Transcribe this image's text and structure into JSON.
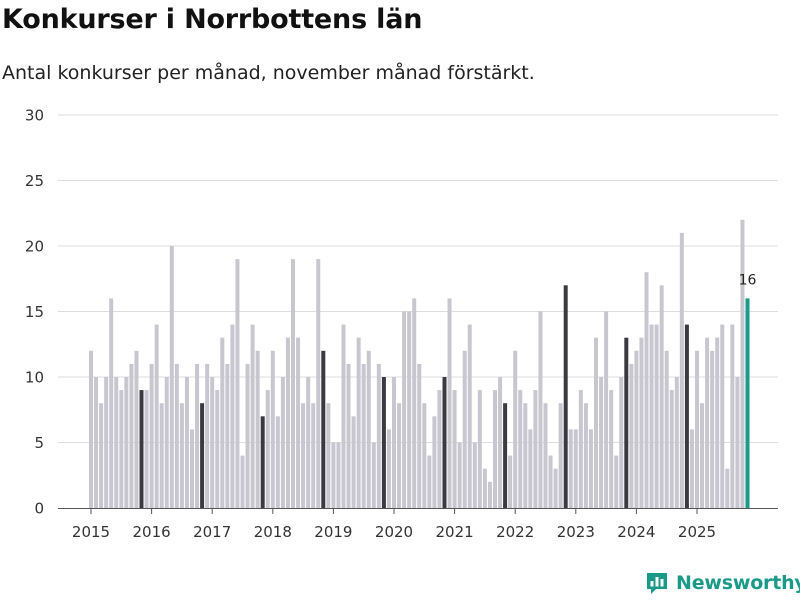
{
  "title": "Konkurser i Norrbottens län",
  "subtitle": "Antal konkurser per månad, november månad förstärkt.",
  "brand": {
    "name": "Newsworthy",
    "color": "#1a9a88",
    "icon": "bar-chart-speech-bubble-icon"
  },
  "colors": {
    "bar": "#c8c7cf",
    "highlight": "#3b3a40",
    "latest": "#1a9a88",
    "grid": "#dddddd",
    "axis": "#555555"
  },
  "chart_data": {
    "type": "bar",
    "title": "Konkurser i Norrbottens län",
    "xlabel": "",
    "ylabel": "",
    "ylim": [
      0,
      30
    ],
    "yticks": [
      0,
      5,
      10,
      15,
      20,
      25,
      30
    ],
    "grid": true,
    "start": "2015-01",
    "highlight_month": "November",
    "x_tick_labels": [
      "2015",
      "2016",
      "2017",
      "2018",
      "2019",
      "2020",
      "2021",
      "2022",
      "2023",
      "2024",
      "2025"
    ],
    "series": [
      {
        "name": "Antal konkurser",
        "values": [
          12,
          10,
          8,
          10,
          16,
          10,
          9,
          10,
          11,
          12,
          9,
          9,
          11,
          14,
          8,
          10,
          20,
          11,
          8,
          10,
          6,
          11,
          8,
          11,
          10,
          9,
          13,
          11,
          14,
          19,
          4,
          11,
          14,
          12,
          7,
          9,
          12,
          7,
          10,
          13,
          19,
          13,
          8,
          10,
          8,
          19,
          12,
          8,
          5,
          5,
          14,
          11,
          7,
          13,
          11,
          12,
          5,
          11,
          10,
          6,
          10,
          8,
          15,
          15,
          16,
          11,
          8,
          4,
          7,
          9,
          10,
          16,
          9,
          5,
          12,
          14,
          5,
          9,
          3,
          2,
          9,
          10,
          8,
          4,
          12,
          9,
          8,
          6,
          9,
          15,
          8,
          4,
          3,
          8,
          17,
          6,
          6,
          9,
          8,
          6,
          13,
          10,
          15,
          9,
          4,
          10,
          13,
          11,
          12,
          13,
          18,
          14,
          14,
          17,
          12,
          9,
          10,
          21,
          14,
          6,
          12,
          8,
          13,
          12,
          13,
          14,
          3,
          14,
          10,
          22,
          16
        ]
      }
    ],
    "annotations": [
      {
        "label": "16",
        "target": "latest"
      }
    ]
  }
}
